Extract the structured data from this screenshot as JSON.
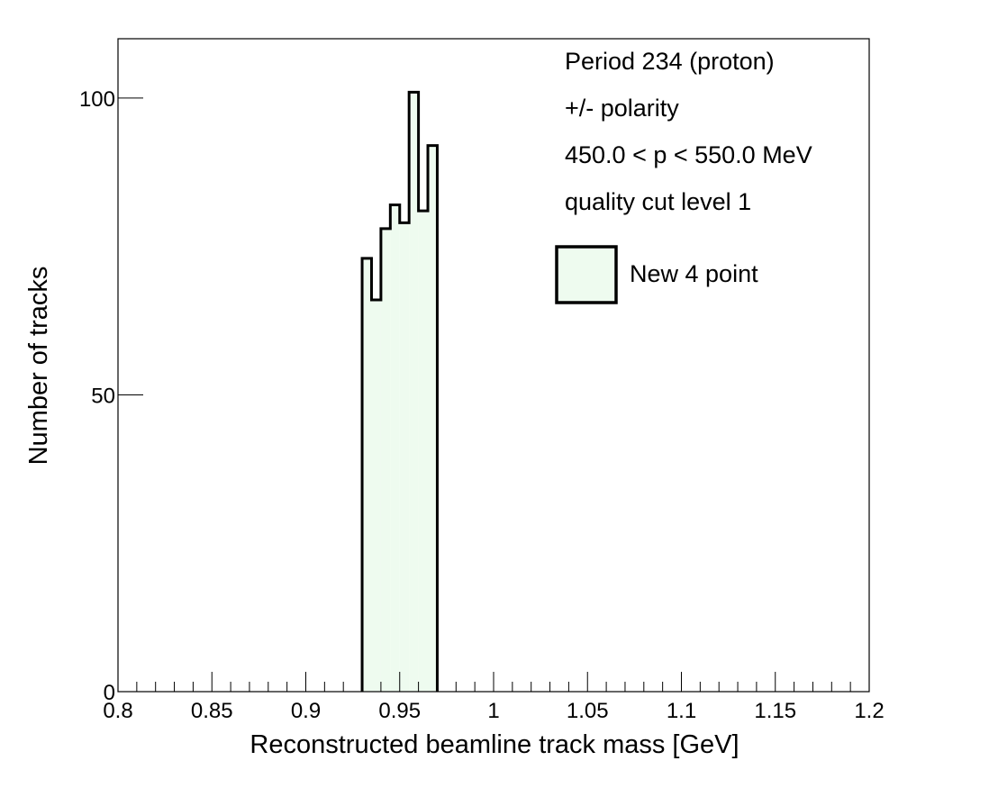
{
  "chart_data": {
    "type": "bar",
    "histogram": true,
    "bin_width": 0.005,
    "bin_lows": [
      0.93,
      0.935,
      0.94,
      0.945,
      0.95,
      0.955,
      0.96,
      0.965
    ],
    "values": [
      73,
      66,
      78,
      82,
      79,
      101,
      81,
      92
    ],
    "xlabel": "Reconstructed beamline track mass [GeV]",
    "ylabel": "Number of tracks",
    "xlim": [
      0.8,
      1.2
    ],
    "ylim": [
      0,
      110
    ],
    "x_ticks": [
      "0.8",
      "0.85",
      "0.9",
      "0.95",
      "1",
      "1.05",
      "1.1",
      "1.15",
      "1.2"
    ],
    "x_tick_values": [
      0.8,
      0.85,
      0.9,
      0.95,
      1.0,
      1.05,
      1.1,
      1.15,
      1.2
    ],
    "y_ticks": [
      "0",
      "50",
      "100"
    ],
    "y_tick_values": [
      0,
      50,
      100
    ],
    "grid": false,
    "fill_color": "#eefbef",
    "line_color": "#000000",
    "annotations": [
      "Period 234 (proton)",
      "+/- polarity",
      "450.0 < p < 550.0 MeV",
      "quality cut level 1"
    ],
    "legend": {
      "placement": "top-right",
      "entries": [
        {
          "label": "New 4 point",
          "color": "#eefbef"
        }
      ]
    }
  }
}
